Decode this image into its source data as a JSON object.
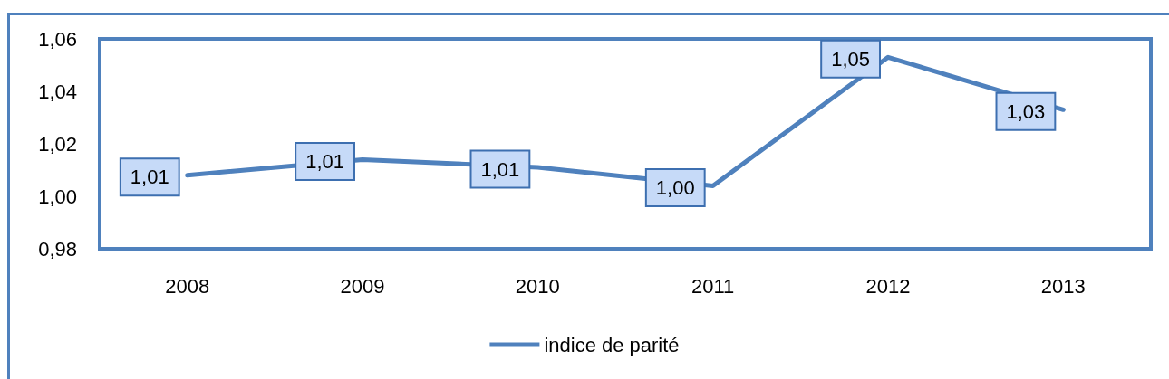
{
  "chart_data": {
    "type": "line",
    "categories": [
      "2008",
      "2009",
      "2010",
      "2011",
      "2012",
      "2013"
    ],
    "series": [
      {
        "name": "indice de parité",
        "color": "#4f81bd",
        "values": [
          1.008,
          1.014,
          1.011,
          1.004,
          1.053,
          1.033
        ],
        "value_labels": [
          "1,01",
          "1,01",
          "1,01",
          "1,00",
          "1,05",
          "1,03"
        ]
      }
    ],
    "ylim": [
      0.98,
      1.06
    ],
    "yticks": [
      {
        "value": 0.98,
        "label": "0,98"
      },
      {
        "value": 1.0,
        "label": "1,00"
      },
      {
        "value": 1.02,
        "label": "1,02"
      },
      {
        "value": 1.04,
        "label": "1,04"
      },
      {
        "value": 1.06,
        "label": "1,06"
      }
    ],
    "grid": false,
    "legend": "bottom",
    "marker": "none",
    "line_style": "solid"
  }
}
